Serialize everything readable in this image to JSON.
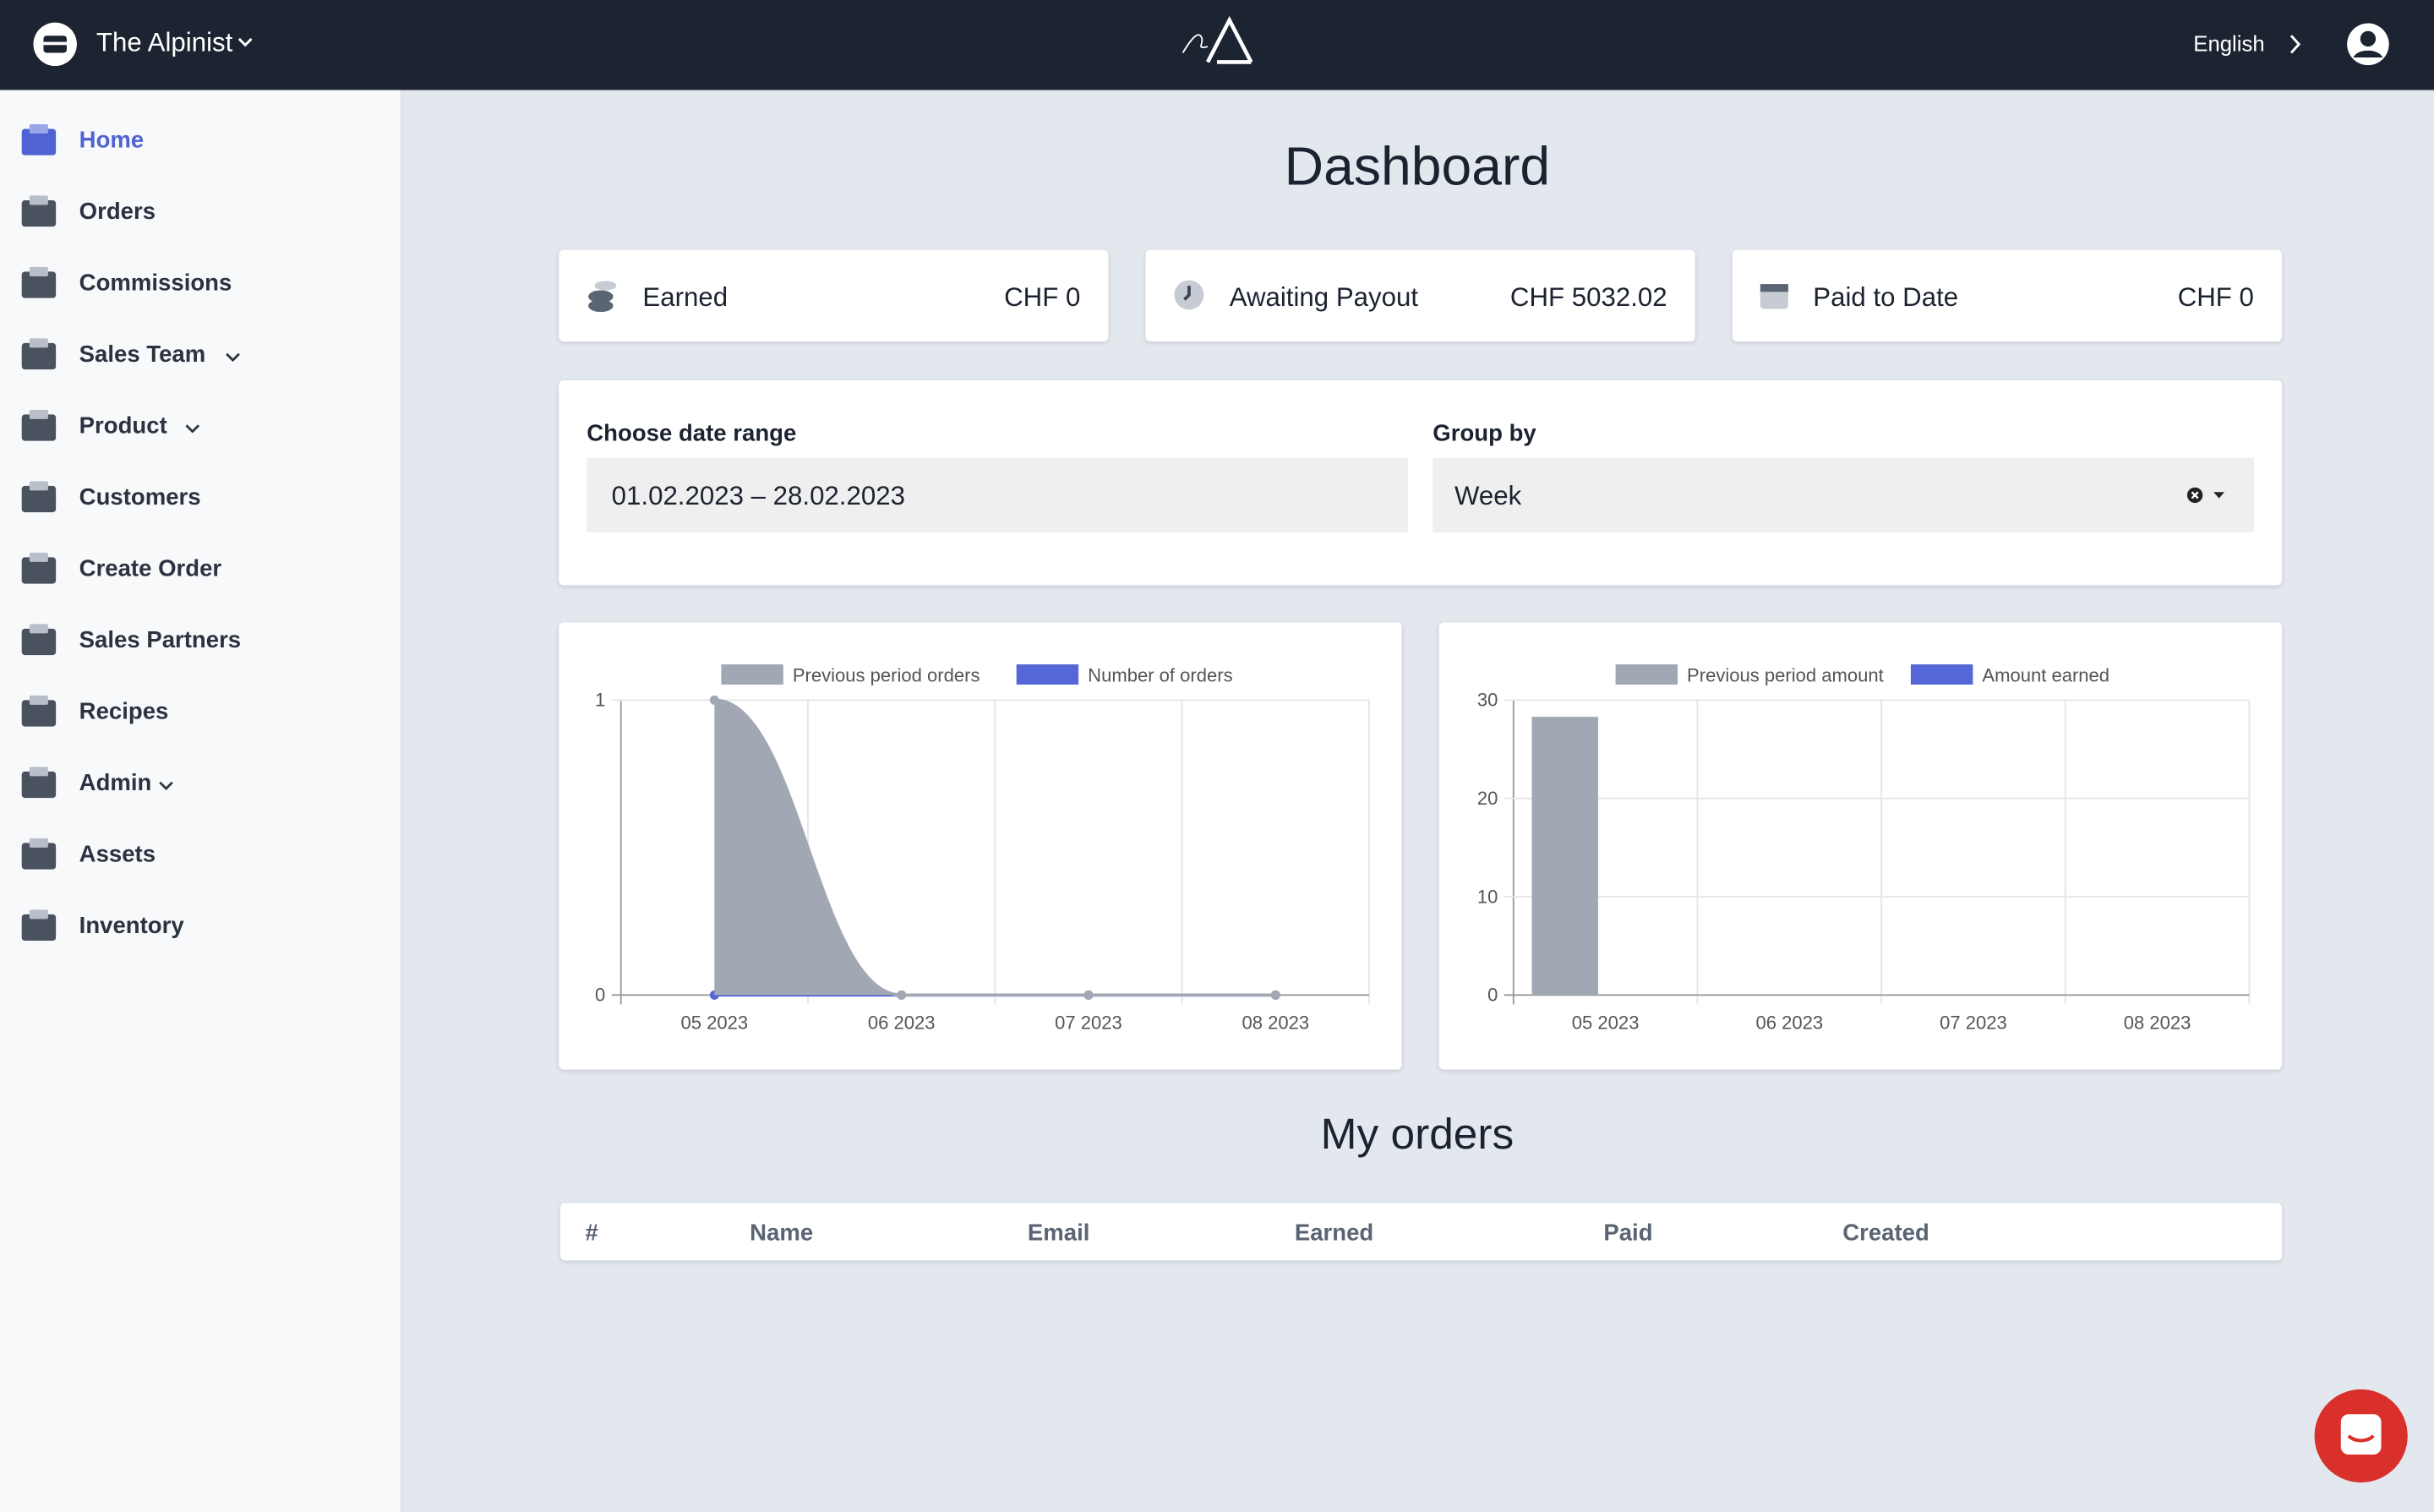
{
  "header": {
    "brand": "The Alpinist",
    "language": "English"
  },
  "sidebar": {
    "items": [
      {
        "label": "Home",
        "active": true
      },
      {
        "label": "Orders"
      },
      {
        "label": "Commissions"
      },
      {
        "label": "Sales Team",
        "expandable": true
      },
      {
        "label": "Product",
        "expandable": true
      },
      {
        "label": "Customers"
      },
      {
        "label": "Create Order"
      },
      {
        "label": "Sales Partners"
      },
      {
        "label": "Recipes"
      },
      {
        "label": "Admin",
        "expandable": true
      },
      {
        "label": "Assets"
      },
      {
        "label": "Inventory"
      }
    ]
  },
  "title": "Dashboard",
  "stats": [
    {
      "label": "Earned",
      "value": "CHF 0"
    },
    {
      "label": "Awaiting Payout",
      "value": "CHF 5032.02"
    },
    {
      "label": "Paid to Date",
      "value": "CHF 0"
    }
  ],
  "filters": {
    "date_label": "Choose date range",
    "date_value": "01.02.2023 – 28.02.2023",
    "group_label": "Group by",
    "group_value": "Week"
  },
  "chart_data": [
    {
      "type": "line",
      "categories": [
        "05 2023",
        "06 2023",
        "07 2023",
        "08 2023"
      ],
      "series": [
        {
          "name": "Previous period orders",
          "color": "#a1a8b4",
          "values": [
            1,
            0,
            0,
            0
          ]
        },
        {
          "name": "Number of orders",
          "color": "#5566d6",
          "values": [
            0,
            0,
            0,
            0
          ]
        }
      ],
      "ylim": [
        0,
        1
      ],
      "yticks": [
        0,
        1
      ],
      "grid": true
    },
    {
      "type": "bar",
      "categories": [
        "05 2023",
        "06 2023",
        "07 2023",
        "08 2023"
      ],
      "series": [
        {
          "name": "Previous period amount",
          "color": "#a1a8b4",
          "values": [
            28.3,
            0,
            0,
            0
          ]
        },
        {
          "name": "Amount earned",
          "color": "#5566d6",
          "values": [
            0,
            0,
            0,
            0
          ]
        }
      ],
      "ylim": [
        0,
        30
      ],
      "yticks": [
        0,
        10,
        20,
        30
      ],
      "grid": true
    }
  ],
  "orders": {
    "title": "My orders",
    "columns": [
      "#",
      "Name",
      "Email",
      "Earned",
      "Paid",
      "Created"
    ]
  }
}
